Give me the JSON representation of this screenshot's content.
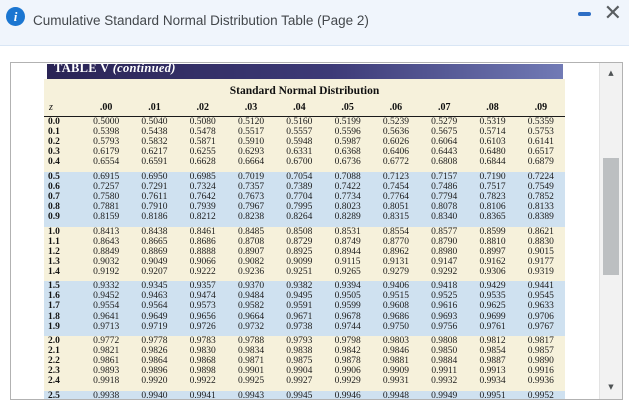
{
  "window": {
    "title": "Cumulative Standard Normal Distribution Table (Page 2)",
    "info_glyph": "i",
    "close_glyph": "✕"
  },
  "scrollbar": {
    "up_glyph": "▲",
    "down_glyph": "▼"
  },
  "table": {
    "banner_title": "TABLE V",
    "banner_continued": "(continued)",
    "subtitle": "Standard Normal Distribution",
    "columns": [
      "z",
      ".00",
      ".01",
      ".02",
      ".03",
      ".04",
      ".05",
      ".06",
      ".07",
      ".08",
      ".09"
    ],
    "rows": [
      [
        "0.0",
        "0.5000",
        "0.5040",
        "0.5080",
        "0.5120",
        "0.5160",
        "0.5199",
        "0.5239",
        "0.5279",
        "0.5319",
        "0.5359"
      ],
      [
        "0.1",
        "0.5398",
        "0.5438",
        "0.5478",
        "0.5517",
        "0.5557",
        "0.5596",
        "0.5636",
        "0.5675",
        "0.5714",
        "0.5753"
      ],
      [
        "0.2",
        "0.5793",
        "0.5832",
        "0.5871",
        "0.5910",
        "0.5948",
        "0.5987",
        "0.6026",
        "0.6064",
        "0.6103",
        "0.6141"
      ],
      [
        "0.3",
        "0.6179",
        "0.6217",
        "0.6255",
        "0.6293",
        "0.6331",
        "0.6368",
        "0.6406",
        "0.6443",
        "0.6480",
        "0.6517"
      ],
      [
        "0.4",
        "0.6554",
        "0.6591",
        "0.6628",
        "0.6664",
        "0.6700",
        "0.6736",
        "0.6772",
        "0.6808",
        "0.6844",
        "0.6879"
      ],
      [
        "0.5",
        "0.6915",
        "0.6950",
        "0.6985",
        "0.7019",
        "0.7054",
        "0.7088",
        "0.7123",
        "0.7157",
        "0.7190",
        "0.7224"
      ],
      [
        "0.6",
        "0.7257",
        "0.7291",
        "0.7324",
        "0.7357",
        "0.7389",
        "0.7422",
        "0.7454",
        "0.7486",
        "0.7517",
        "0.7549"
      ],
      [
        "0.7",
        "0.7580",
        "0.7611",
        "0.7642",
        "0.7673",
        "0.7704",
        "0.7734",
        "0.7764",
        "0.7794",
        "0.7823",
        "0.7852"
      ],
      [
        "0.8",
        "0.7881",
        "0.7910",
        "0.7939",
        "0.7967",
        "0.7995",
        "0.8023",
        "0.8051",
        "0.8078",
        "0.8106",
        "0.8133"
      ],
      [
        "0.9",
        "0.8159",
        "0.8186",
        "0.8212",
        "0.8238",
        "0.8264",
        "0.8289",
        "0.8315",
        "0.8340",
        "0.8365",
        "0.8389"
      ],
      [
        "1.0",
        "0.8413",
        "0.8438",
        "0.8461",
        "0.8485",
        "0.8508",
        "0.8531",
        "0.8554",
        "0.8577",
        "0.8599",
        "0.8621"
      ],
      [
        "1.1",
        "0.8643",
        "0.8665",
        "0.8686",
        "0.8708",
        "0.8729",
        "0.8749",
        "0.8770",
        "0.8790",
        "0.8810",
        "0.8830"
      ],
      [
        "1.2",
        "0.8849",
        "0.8869",
        "0.8888",
        "0.8907",
        "0.8925",
        "0.8944",
        "0.8962",
        "0.8980",
        "0.8997",
        "0.9015"
      ],
      [
        "1.3",
        "0.9032",
        "0.9049",
        "0.9066",
        "0.9082",
        "0.9099",
        "0.9115",
        "0.9131",
        "0.9147",
        "0.9162",
        "0.9177"
      ],
      [
        "1.4",
        "0.9192",
        "0.9207",
        "0.9222",
        "0.9236",
        "0.9251",
        "0.9265",
        "0.9279",
        "0.9292",
        "0.9306",
        "0.9319"
      ],
      [
        "1.5",
        "0.9332",
        "0.9345",
        "0.9357",
        "0.9370",
        "0.9382",
        "0.9394",
        "0.9406",
        "0.9418",
        "0.9429",
        "0.9441"
      ],
      [
        "1.6",
        "0.9452",
        "0.9463",
        "0.9474",
        "0.9484",
        "0.9495",
        "0.9505",
        "0.9515",
        "0.9525",
        "0.9535",
        "0.9545"
      ],
      [
        "1.7",
        "0.9554",
        "0.9564",
        "0.9573",
        "0.9582",
        "0.9591",
        "0.9599",
        "0.9608",
        "0.9616",
        "0.9625",
        "0.9633"
      ],
      [
        "1.8",
        "0.9641",
        "0.9649",
        "0.9656",
        "0.9664",
        "0.9671",
        "0.9678",
        "0.9686",
        "0.9693",
        "0.9699",
        "0.9706"
      ],
      [
        "1.9",
        "0.9713",
        "0.9719",
        "0.9726",
        "0.9732",
        "0.9738",
        "0.9744",
        "0.9750",
        "0.9756",
        "0.9761",
        "0.9767"
      ],
      [
        "2.0",
        "0.9772",
        "0.9778",
        "0.9783",
        "0.9788",
        "0.9793",
        "0.9798",
        "0.9803",
        "0.9808",
        "0.9812",
        "0.9817"
      ],
      [
        "2.1",
        "0.9821",
        "0.9826",
        "0.9830",
        "0.9834",
        "0.9838",
        "0.9842",
        "0.9846",
        "0.9850",
        "0.9854",
        "0.9857"
      ],
      [
        "2.2",
        "0.9861",
        "0.9864",
        "0.9868",
        "0.9871",
        "0.9875",
        "0.9878",
        "0.9881",
        "0.9884",
        "0.9887",
        "0.9890"
      ],
      [
        "2.3",
        "0.9893",
        "0.9896",
        "0.9898",
        "0.9901",
        "0.9904",
        "0.9906",
        "0.9909",
        "0.9911",
        "0.9913",
        "0.9916"
      ],
      [
        "2.4",
        "0.9918",
        "0.9920",
        "0.9922",
        "0.9925",
        "0.9927",
        "0.9929",
        "0.9931",
        "0.9932",
        "0.9934",
        "0.9936"
      ],
      [
        "2.5",
        "0.9938",
        "0.9940",
        "0.9941",
        "0.9943",
        "0.9945",
        "0.9946",
        "0.9948",
        "0.9949",
        "0.9951",
        "0.9952"
      ]
    ]
  },
  "colors": {
    "titlebar_bg": "#f0f5fc",
    "accent_blue": "#1b76d1",
    "minimize_blue": "#2d6ec5",
    "banner_dark": "#2a2455",
    "banner_light": "#717ab5",
    "sheet_cream": "#f6f1db",
    "band_blue": "#cfe1f0"
  }
}
